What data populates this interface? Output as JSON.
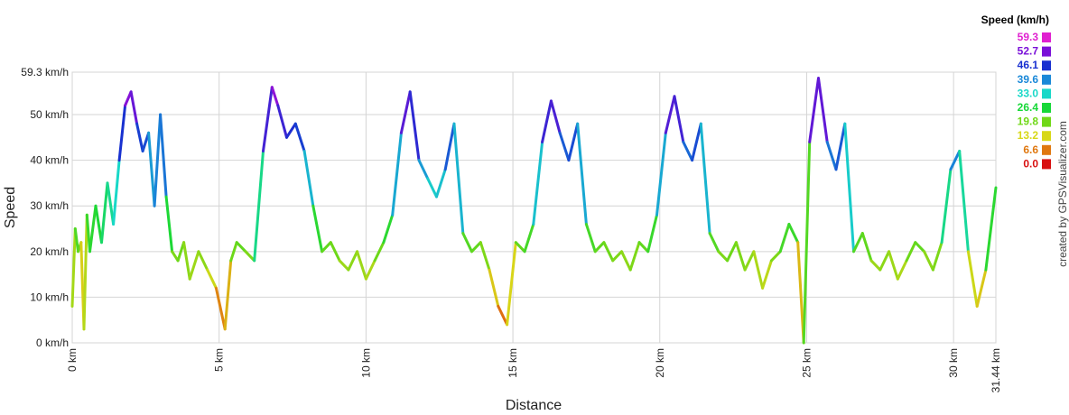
{
  "chart_data": {
    "type": "line",
    "title": "",
    "xlabel": "Distance",
    "ylabel": "Speed",
    "xlim": [
      0,
      31.44
    ],
    "ylim": [
      0,
      59.3
    ],
    "grid": true,
    "x_ticks": [
      {
        "value": 0,
        "label": "0 km"
      },
      {
        "value": 5,
        "label": "5 km"
      },
      {
        "value": 10,
        "label": "10 km"
      },
      {
        "value": 15,
        "label": "15 km"
      },
      {
        "value": 20,
        "label": "20 km"
      },
      {
        "value": 25,
        "label": "25 km"
      },
      {
        "value": 30,
        "label": "30 km"
      },
      {
        "value": 31.44,
        "label": "31.44 km"
      }
    ],
    "y_ticks": [
      {
        "value": 0,
        "label": "0 km/h"
      },
      {
        "value": 10,
        "label": "10 km/h"
      },
      {
        "value": 20,
        "label": "20 km/h"
      },
      {
        "value": 30,
        "label": "30 km/h"
      },
      {
        "value": 40,
        "label": "40 km/h"
      },
      {
        "value": 50,
        "label": "50 km/h"
      },
      {
        "value": 59.3,
        "label": "59.3 km/h"
      }
    ],
    "legend": {
      "title": "Speed (km/h)",
      "placement": "top-right",
      "entries": [
        {
          "label": "59.3",
          "color": "#e020d0"
        },
        {
          "label": "52.7",
          "color": "#7a10d8"
        },
        {
          "label": "46.1",
          "color": "#1830d0"
        },
        {
          "label": "39.6",
          "color": "#1a88d8"
        },
        {
          "label": "33.0",
          "color": "#18d8c8"
        },
        {
          "label": "26.4",
          "color": "#18d838"
        },
        {
          "label": "19.8",
          "color": "#70d818"
        },
        {
          "label": "13.2",
          "color": "#d8d818"
        },
        {
          "label": "6.6",
          "color": "#e07810"
        },
        {
          "label": "0.0",
          "color": "#d81010"
        }
      ]
    },
    "series": [
      {
        "x": [
          0.0,
          0.1,
          0.2,
          0.3,
          0.4,
          0.5,
          0.6,
          0.8,
          1.0,
          1.2,
          1.4,
          1.6,
          1.8,
          2.0,
          2.2,
          2.4,
          2.6,
          2.8,
          3.0,
          3.2,
          3.4,
          3.6,
          3.8,
          4.0,
          4.3,
          4.6,
          4.9,
          5.2,
          5.4,
          5.6,
          5.9,
          6.2,
          6.5,
          6.8,
          7.0,
          7.3,
          7.6,
          7.9,
          8.2,
          8.5,
          8.8,
          9.1,
          9.4,
          9.7,
          10.0,
          10.3,
          10.6,
          10.9,
          11.2,
          11.5,
          11.8,
          12.1,
          12.4,
          12.7,
          13.0,
          13.3,
          13.6,
          13.9,
          14.2,
          14.5,
          14.8,
          15.1,
          15.4,
          15.7,
          16.0,
          16.3,
          16.6,
          16.9,
          17.2,
          17.5,
          17.8,
          18.1,
          18.4,
          18.7,
          19.0,
          19.3,
          19.6,
          19.9,
          20.2,
          20.5,
          20.8,
          21.1,
          21.4,
          21.7,
          22.0,
          22.3,
          22.6,
          22.9,
          23.2,
          23.5,
          23.8,
          24.1,
          24.4,
          24.7,
          24.9,
          25.1,
          25.4,
          25.7,
          26.0,
          26.3,
          26.6,
          26.9,
          27.2,
          27.5,
          27.8,
          28.1,
          28.4,
          28.7,
          29.0,
          29.3,
          29.6,
          29.9,
          30.2,
          30.5,
          30.8,
          31.1,
          31.44
        ],
        "y": [
          8,
          25,
          20,
          22,
          3,
          28,
          20,
          30,
          22,
          35,
          26,
          40,
          52,
          55,
          48,
          42,
          46,
          30,
          50,
          32,
          20,
          18,
          22,
          14,
          20,
          16,
          12,
          3,
          18,
          22,
          20,
          18,
          42,
          56,
          52,
          45,
          48,
          42,
          30,
          20,
          22,
          18,
          16,
          20,
          14,
          18,
          22,
          28,
          46,
          55,
          40,
          36,
          32,
          38,
          48,
          24,
          20,
          22,
          16,
          8,
          4,
          22,
          20,
          26,
          44,
          53,
          46,
          40,
          48,
          26,
          20,
          22,
          18,
          20,
          16,
          22,
          20,
          28,
          46,
          54,
          44,
          40,
          48,
          24,
          20,
          18,
          22,
          16,
          20,
          12,
          18,
          20,
          26,
          22,
          0,
          44,
          58,
          44,
          38,
          48,
          20,
          24,
          18,
          16,
          20,
          14,
          18,
          22,
          20,
          16,
          22,
          38,
          42,
          20,
          8,
          16,
          34
        ]
      }
    ]
  },
  "credit": "created by GPSVisualizer.com"
}
